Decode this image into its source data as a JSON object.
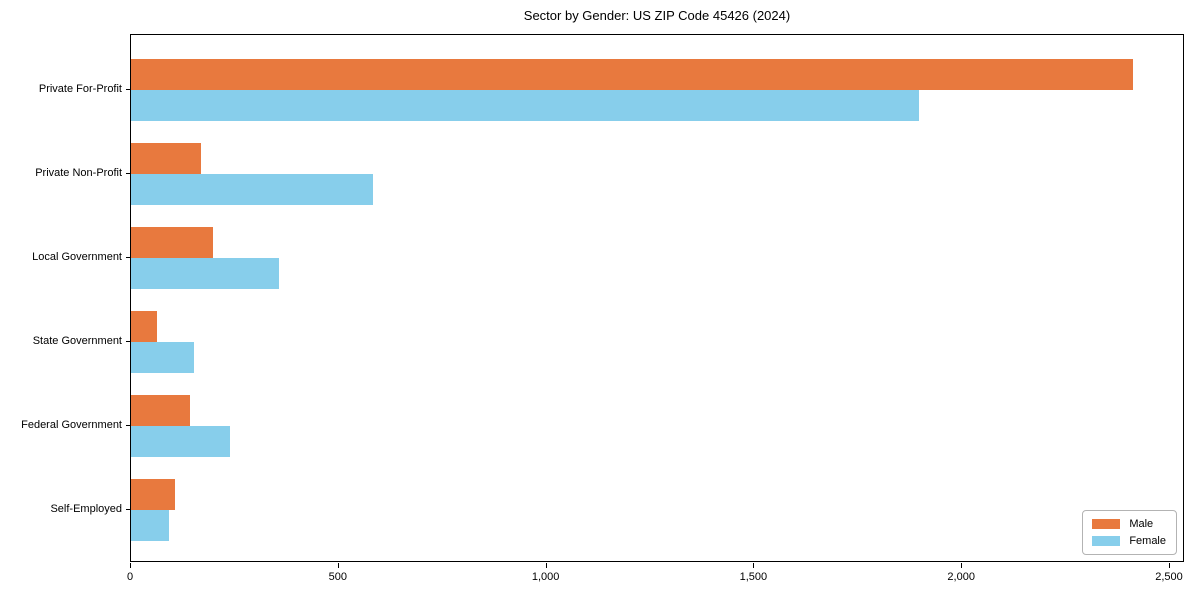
{
  "title": "Sector by Gender: US ZIP Code 45426 (2024)",
  "chart_data": {
    "type": "bar",
    "orientation": "horizontal",
    "title": "Sector by Gender: US ZIP Code 45426 (2024)",
    "categories": [
      "Private For-Profit",
      "Private Non-Profit",
      "Local Government",
      "State Government",
      "Federal Government",
      "Self-Employed"
    ],
    "series": [
      {
        "name": "Male",
        "color": "#e8793e",
        "values": [
          2410,
          168,
          197,
          62,
          141,
          105
        ]
      },
      {
        "name": "Female",
        "color": "#87ceeb",
        "values": [
          1895,
          583,
          355,
          152,
          237,
          91
        ]
      }
    ],
    "xlabel": "",
    "ylabel": "",
    "xlim": [
      0,
      2536
    ],
    "xticks": [
      0,
      500,
      1000,
      1500,
      2000,
      2500
    ],
    "xtick_labels": [
      "0",
      "500",
      "1,000",
      "1,500",
      "2,000",
      "2,500"
    ],
    "legend": {
      "position": "lower right",
      "entries": [
        "Male",
        "Female"
      ]
    },
    "grid": false,
    "background_color": "#ffffff",
    "axis_color": "#000000",
    "legend_border_color": "#b3b3b3"
  }
}
